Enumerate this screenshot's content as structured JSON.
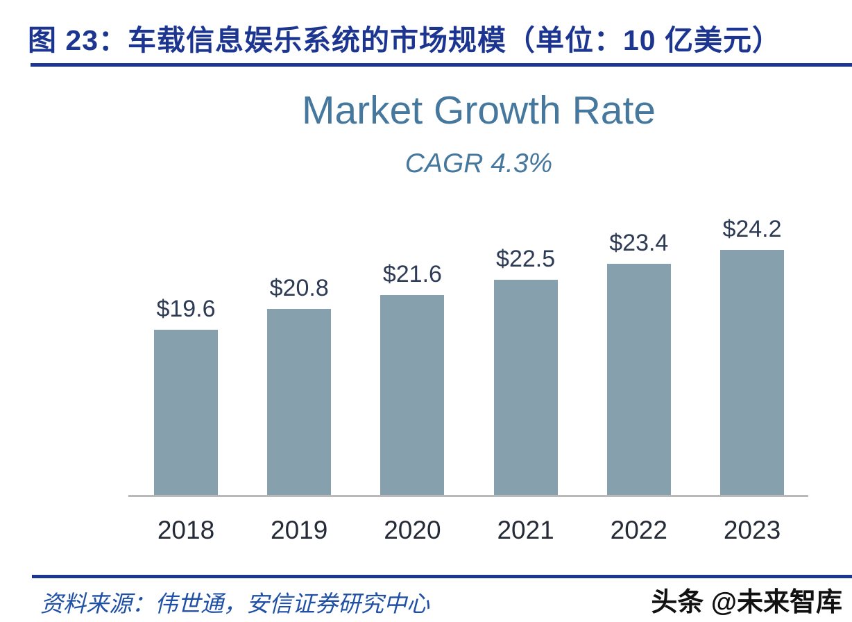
{
  "header": {
    "title": "图 23：车载信息娱乐系统的市场规模（单位：10 亿美元）"
  },
  "chart_data": {
    "type": "bar",
    "title": "Market Growth Rate",
    "subtitle": "CAGR 4.3%",
    "categories": [
      "2018",
      "2019",
      "2020",
      "2021",
      "2022",
      "2023"
    ],
    "values": [
      19.6,
      20.8,
      21.6,
      22.5,
      23.4,
      24.2
    ],
    "value_labels": [
      "$19.6",
      "$20.8",
      "$21.6",
      "$22.5",
      "$23.4",
      "$24.2"
    ],
    "xlabel": "",
    "ylabel": "",
    "ylim": [
      10,
      25
    ],
    "grid": false,
    "legend": "none",
    "bar_color": "#87a0ae"
  },
  "footer": {
    "source": "资料来源：伟世通，安信证券研究中心",
    "watermark": "头条 @未来智库"
  },
  "colors": {
    "figure_title": "#1c3590",
    "rule": "#1c3590",
    "chart_title": "#46789e",
    "bar": "#87a0ae",
    "value_label": "#2e3b55",
    "axis_label": "#242b36",
    "axis_line": "#b9b9b9",
    "source_text": "#2050a5",
    "watermark": "#111111"
  }
}
